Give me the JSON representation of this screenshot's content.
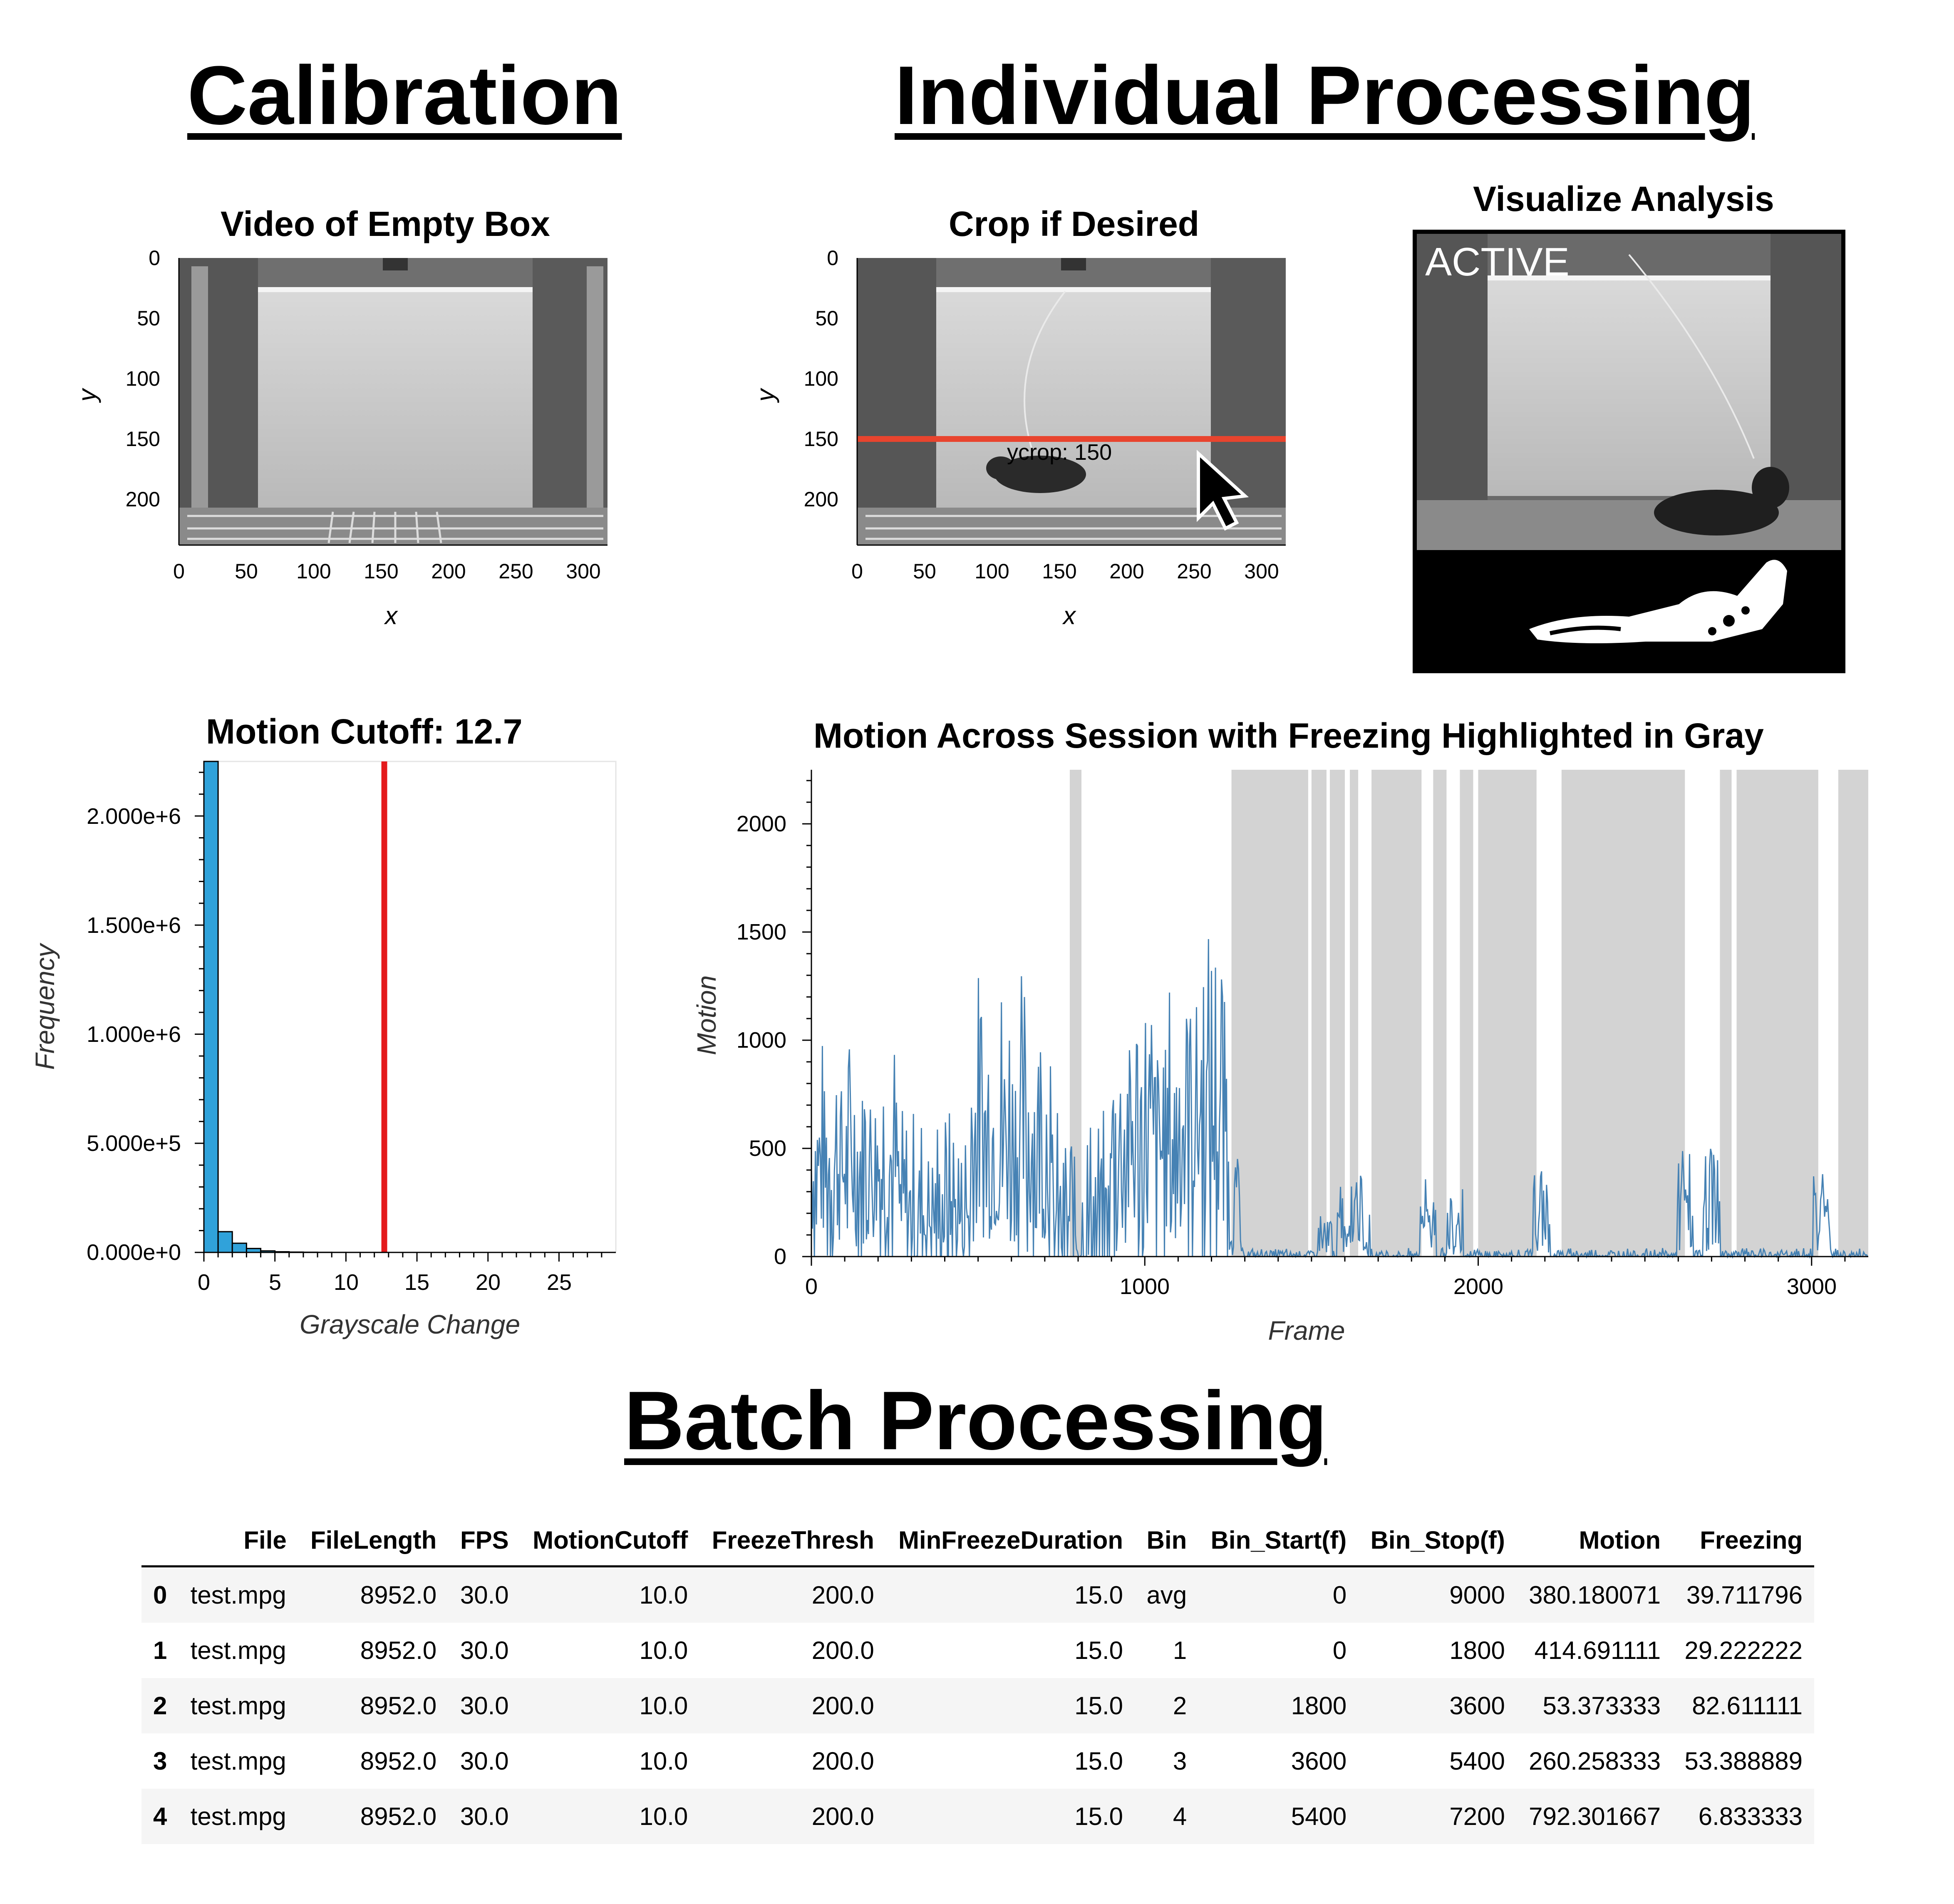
{
  "sections": {
    "calibration": "Calibration",
    "individual": "Individual Processing",
    "batch": "Batch Processing"
  },
  "empty_box": {
    "title": "Video of Empty Box",
    "xlabel": "x",
    "ylabel": "y",
    "xticks": [
      "0",
      "50",
      "100",
      "150",
      "200",
      "250",
      "300"
    ],
    "yticks": [
      "0",
      "50",
      "100",
      "150",
      "200"
    ]
  },
  "crop": {
    "title": "Crop if Desired",
    "xlabel": "x",
    "ylabel": "y",
    "xticks": [
      "0",
      "50",
      "100",
      "150",
      "200",
      "250",
      "300"
    ],
    "yticks": [
      "0",
      "50",
      "100",
      "150",
      "200"
    ],
    "crop_label": "ycrop: 150",
    "crop_y": 150,
    "line_color": "#e8442e",
    "cursor_icon": "arrow-cursor-icon"
  },
  "visualize": {
    "title": "Visualize Analysis",
    "status": "ACTIVE"
  },
  "histogram": {
    "title": "Motion Cutoff: 12.7",
    "xlabel": "Grayscale Change",
    "ylabel": "Frequency",
    "bar_color": "#30a2da",
    "cutoff_color": "#e41a1c",
    "xticks": [
      "0",
      "5",
      "10",
      "15",
      "20",
      "25"
    ],
    "yticks": [
      "0.000e+0",
      "5.000e+5",
      "1.000e+6",
      "1.500e+6",
      "2.000e+6",
      "2.500e+6"
    ]
  },
  "motion_plot": {
    "title": "Motion Across Session with Freezing Highlighted in Gray",
    "xlabel": "Frame",
    "ylabel": "Motion",
    "line_color": "#4682b4",
    "freeze_color": "#d3d3d3",
    "xticks": [
      "0",
      "1000",
      "2000",
      "3000"
    ],
    "yticks": [
      "0",
      "500",
      "1000",
      "1500",
      "2000"
    ]
  },
  "chart_data": [
    {
      "type": "bar",
      "title": "Motion Cutoff: 12.7",
      "xlabel": "Grayscale Change",
      "ylabel": "Frequency",
      "bin_width": 1,
      "bin_starts": [
        0,
        1,
        2,
        3,
        4,
        5,
        6,
        7,
        8,
        9,
        10,
        11,
        12
      ],
      "values": [
        2250000,
        95000,
        42000,
        18000,
        7000,
        3000,
        1500,
        800,
        400,
        200,
        100,
        60,
        30
      ],
      "cutoff": 12.7,
      "xlim": [
        0,
        29
      ],
      "ylim": [
        0,
        2250000
      ],
      "grid": false
    },
    {
      "type": "line",
      "title": "Motion Across Session with Freezing Highlighted in Gray",
      "xlabel": "Frame",
      "ylabel": "Motion",
      "xlim": [
        0,
        3170
      ],
      "ylim": [
        0,
        2250
      ],
      "freezing_intervals": [
        [
          775,
          810
        ],
        [
          1260,
          1490
        ],
        [
          1500,
          1545
        ],
        [
          1555,
          1600
        ],
        [
          1615,
          1640
        ],
        [
          1680,
          1830
        ],
        [
          1865,
          1905
        ],
        [
          1945,
          1985
        ],
        [
          2000,
          2175
        ],
        [
          2250,
          2620
        ],
        [
          2725,
          2760
        ],
        [
          2775,
          3020
        ],
        [
          3080,
          3170
        ]
      ],
      "segments": [
        {
          "range": [
            0,
            260
          ],
          "peak": 1050,
          "base": 420
        },
        {
          "range": [
            260,
            480
          ],
          "peak": 700,
          "base": 200
        },
        {
          "range": [
            480,
            720
          ],
          "peak": 1350,
          "base": 550
        },
        {
          "range": [
            720,
            900
          ],
          "peak": 700,
          "base": 120
        },
        {
          "range": [
            900,
            1100
          ],
          "peak": 1300,
          "base": 500
        },
        {
          "range": [
            1100,
            1250
          ],
          "peak": 1550,
          "base": 650
        },
        {
          "range": [
            1250,
            1290
          ],
          "peak": 600,
          "base": 250
        },
        {
          "range": [
            1290,
            3170
          ],
          "peak": 40,
          "base": 5
        }
      ],
      "bursts": [
        [
          1540,
          200
        ],
        [
          1600,
          330
        ],
        [
          1650,
          390
        ],
        [
          1850,
          360
        ],
        [
          1930,
          320
        ],
        [
          2190,
          400
        ],
        [
          2620,
          500
        ],
        [
          2700,
          510
        ],
        [
          3030,
          400
        ]
      ]
    }
  ],
  "table": {
    "columns": [
      "",
      "File",
      "FileLength",
      "FPS",
      "MotionCutoff",
      "FreezeThresh",
      "MinFreezeDuration",
      "Bin",
      "Bin_Start(f)",
      "Bin_Stop(f)",
      "Motion",
      "Freezing"
    ],
    "rows": [
      [
        "0",
        "test.mpg",
        "8952.0",
        "30.0",
        "10.0",
        "200.0",
        "15.0",
        "avg",
        "0",
        "9000",
        "380.180071",
        "39.711796"
      ],
      [
        "1",
        "test.mpg",
        "8952.0",
        "30.0",
        "10.0",
        "200.0",
        "15.0",
        "1",
        "0",
        "1800",
        "414.691111",
        "29.222222"
      ],
      [
        "2",
        "test.mpg",
        "8952.0",
        "30.0",
        "10.0",
        "200.0",
        "15.0",
        "2",
        "1800",
        "3600",
        "53.373333",
        "82.611111"
      ],
      [
        "3",
        "test.mpg",
        "8952.0",
        "30.0",
        "10.0",
        "200.0",
        "15.0",
        "3",
        "3600",
        "5400",
        "260.258333",
        "53.388889"
      ],
      [
        "4",
        "test.mpg",
        "8952.0",
        "30.0",
        "10.0",
        "200.0",
        "15.0",
        "4",
        "5400",
        "7200",
        "792.301667",
        "6.833333"
      ]
    ]
  }
}
